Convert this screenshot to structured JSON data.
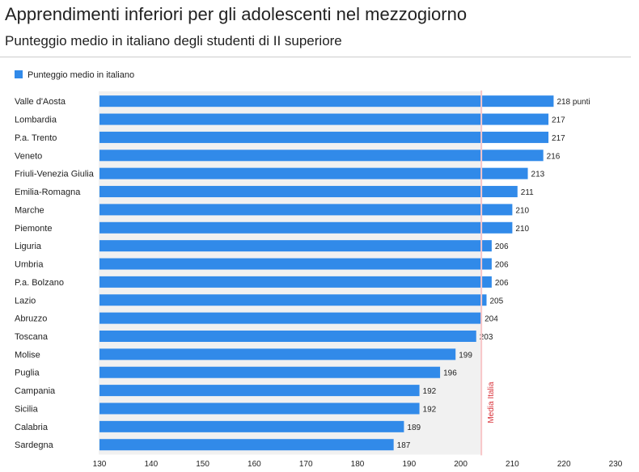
{
  "chart_data": {
    "type": "bar",
    "orientation": "horizontal",
    "title": "Apprendimenti inferiori per gli adolescenti nel mezzogiorno",
    "subtitle": "Punteggio medio in italiano degli studenti di II superiore",
    "legend": {
      "label": "Punteggio medio in italiano",
      "placement": "top-left"
    },
    "categories": [
      "Valle d'Aosta",
      "Lombardia",
      "P.a. Trento",
      "Veneto",
      "Friuli-Venezia Giulia",
      "Emilia-Romagna",
      "Marche",
      "Piemonte",
      "Liguria",
      "Umbria",
      "P.a. Bolzano",
      "Lazio",
      "Abruzzo",
      "Toscana",
      "Molise",
      "Puglia",
      "Campania",
      "Sicilia",
      "Calabria",
      "Sardegna"
    ],
    "series": [
      {
        "name": "Punteggio medio in italiano",
        "values": [
          218,
          217,
          217,
          216,
          213,
          211,
          210,
          210,
          206,
          206,
          206,
          205,
          204,
          203,
          199,
          196,
          192,
          192,
          189,
          187
        ]
      }
    ],
    "data_labels": [
      "218 punti",
      "217",
      "217",
      "216",
      "213",
      "211",
      "210",
      "210",
      "206",
      "206",
      "206",
      "205",
      "204",
      "203",
      "199",
      "196",
      "192",
      "192",
      "189",
      "187"
    ],
    "xlim": [
      130,
      230
    ],
    "xticks": [
      130,
      140,
      150,
      160,
      170,
      180,
      190,
      200,
      210,
      220,
      230
    ],
    "reference_line": {
      "value": 204,
      "label": "Media Italia"
    },
    "colors": {
      "bar": "#318ae9",
      "band": "#f1f1f1",
      "reference": "#f7c6c8",
      "reference_text": "#d9323a"
    }
  }
}
